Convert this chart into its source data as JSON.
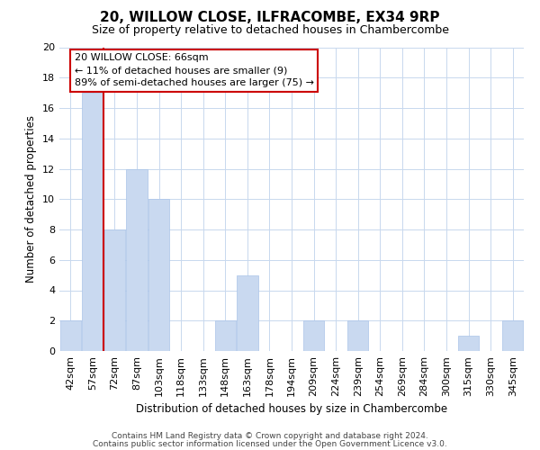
{
  "title": "20, WILLOW CLOSE, ILFRACOMBE, EX34 9RP",
  "subtitle": "Size of property relative to detached houses in Chambercombe",
  "xlabel": "Distribution of detached houses by size in Chambercombe",
  "ylabel": "Number of detached properties",
  "bar_labels": [
    "42sqm",
    "57sqm",
    "72sqm",
    "87sqm",
    "103sqm",
    "118sqm",
    "133sqm",
    "148sqm",
    "163sqm",
    "178sqm",
    "194sqm",
    "209sqm",
    "224sqm",
    "239sqm",
    "254sqm",
    "269sqm",
    "284sqm",
    "300sqm",
    "315sqm",
    "330sqm",
    "345sqm"
  ],
  "bar_values": [
    2,
    17,
    8,
    12,
    10,
    0,
    0,
    2,
    5,
    0,
    0,
    2,
    0,
    2,
    0,
    0,
    0,
    0,
    1,
    0,
    2
  ],
  "bar_color": "#c9d9f0",
  "bar_edge_color": "#aac4e8",
  "grid_color": "#c8d8ee",
  "background_color": "#ffffff",
  "ylim": [
    0,
    20
  ],
  "yticks": [
    0,
    2,
    4,
    6,
    8,
    10,
    12,
    14,
    16,
    18,
    20
  ],
  "property_line_x": 1.5,
  "property_line_color": "#cc0000",
  "annotation_line1": "20 WILLOW CLOSE: 66sqm",
  "annotation_line2": "← 11% of detached houses are smaller (9)",
  "annotation_line3": "89% of semi-detached houses are larger (75) →",
  "annotation_box_edge": "#cc0000",
  "footer_line1": "Contains HM Land Registry data © Crown copyright and database right 2024.",
  "footer_line2": "Contains public sector information licensed under the Open Government Licence v3.0."
}
